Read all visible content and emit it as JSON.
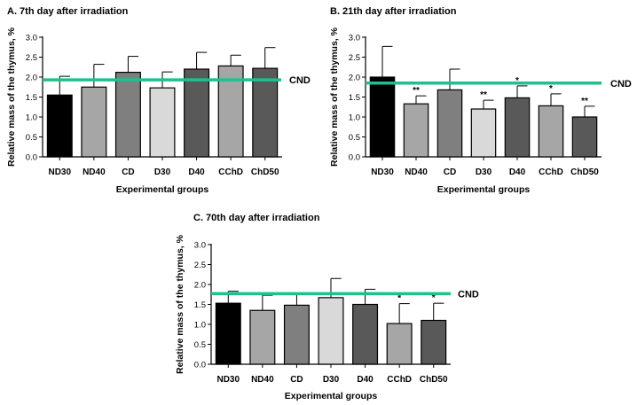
{
  "chart_data": [
    {
      "type": "bar",
      "title": "A. 7th day after irradiation",
      "xlabel": "Experimental groups",
      "ylabel": "Relative mass of the thymus, %",
      "ylim": [
        0,
        3.0
      ],
      "yticks": [
        "0.0",
        "0.5",
        "1.0",
        "1.5",
        "2.0",
        "2.5",
        "3.0"
      ],
      "categories": [
        "ND30",
        "ND40",
        "CD",
        "D30",
        "D40",
        "CChD",
        "ChD50"
      ],
      "values": [
        1.55,
        1.75,
        2.12,
        1.73,
        2.2,
        2.28,
        2.22
      ],
      "errors": [
        0.47,
        0.57,
        0.4,
        0.4,
        0.42,
        0.27,
        0.52
      ],
      "significance": [
        "",
        "",
        "",
        "",
        "",
        "",
        ""
      ],
      "bar_colors": [
        "#000000",
        "#a6a6a6",
        "#7f7f7f",
        "#d9d9d9",
        "#595959",
        "#a6a6a6",
        "#595959"
      ],
      "reference_line": {
        "label": "CND",
        "value": 1.93,
        "color": "#1fbf8f"
      }
    },
    {
      "type": "bar",
      "title": "B. 21th day after irradiation",
      "xlabel": "Experimental groups",
      "ylabel": "Relative mass of the thymus, %",
      "ylim": [
        0,
        3.0
      ],
      "yticks": [
        "0.0",
        "0.5",
        "1.0",
        "1.5",
        "2.0",
        "2.5",
        "3.0"
      ],
      "categories": [
        "ND30",
        "ND40",
        "CD",
        "D30",
        "D40",
        "CChD",
        "ChD50"
      ],
      "values": [
        2.0,
        1.33,
        1.68,
        1.2,
        1.48,
        1.28,
        1.0
      ],
      "errors": [
        0.77,
        0.2,
        0.52,
        0.22,
        0.3,
        0.3,
        0.27
      ],
      "significance": [
        "",
        "**",
        "",
        "**",
        "*",
        "*",
        "**"
      ],
      "bar_colors": [
        "#000000",
        "#a6a6a6",
        "#7f7f7f",
        "#d9d9d9",
        "#595959",
        "#a6a6a6",
        "#595959"
      ],
      "reference_line": {
        "label": "CND",
        "value": 1.85,
        "color": "#1fbf8f"
      }
    },
    {
      "type": "bar",
      "title": "C. 70th day after irradiation",
      "xlabel": "Experimental groups",
      "ylabel": "Relative mass of the thymus, %",
      "ylim": [
        0,
        3.0
      ],
      "yticks": [
        "0.0",
        "0.5",
        "1.0",
        "1.5",
        "2.0",
        "2.5",
        "3.0"
      ],
      "categories": [
        "ND30",
        "ND40",
        "CD",
        "D30",
        "D40",
        "CChD",
        "ChD50"
      ],
      "values": [
        1.53,
        1.35,
        1.48,
        1.67,
        1.5,
        1.02,
        1.1
      ],
      "errors": [
        0.3,
        0.38,
        0.27,
        0.48,
        0.38,
        0.5,
        0.43
      ],
      "significance": [
        "",
        "",
        "",
        "",
        "",
        "*",
        "*"
      ],
      "bar_colors": [
        "#000000",
        "#a6a6a6",
        "#7f7f7f",
        "#d9d9d9",
        "#595959",
        "#a6a6a6",
        "#595959"
      ],
      "reference_line": {
        "label": "CND",
        "value": 1.77,
        "color": "#1fbf8f"
      }
    }
  ]
}
